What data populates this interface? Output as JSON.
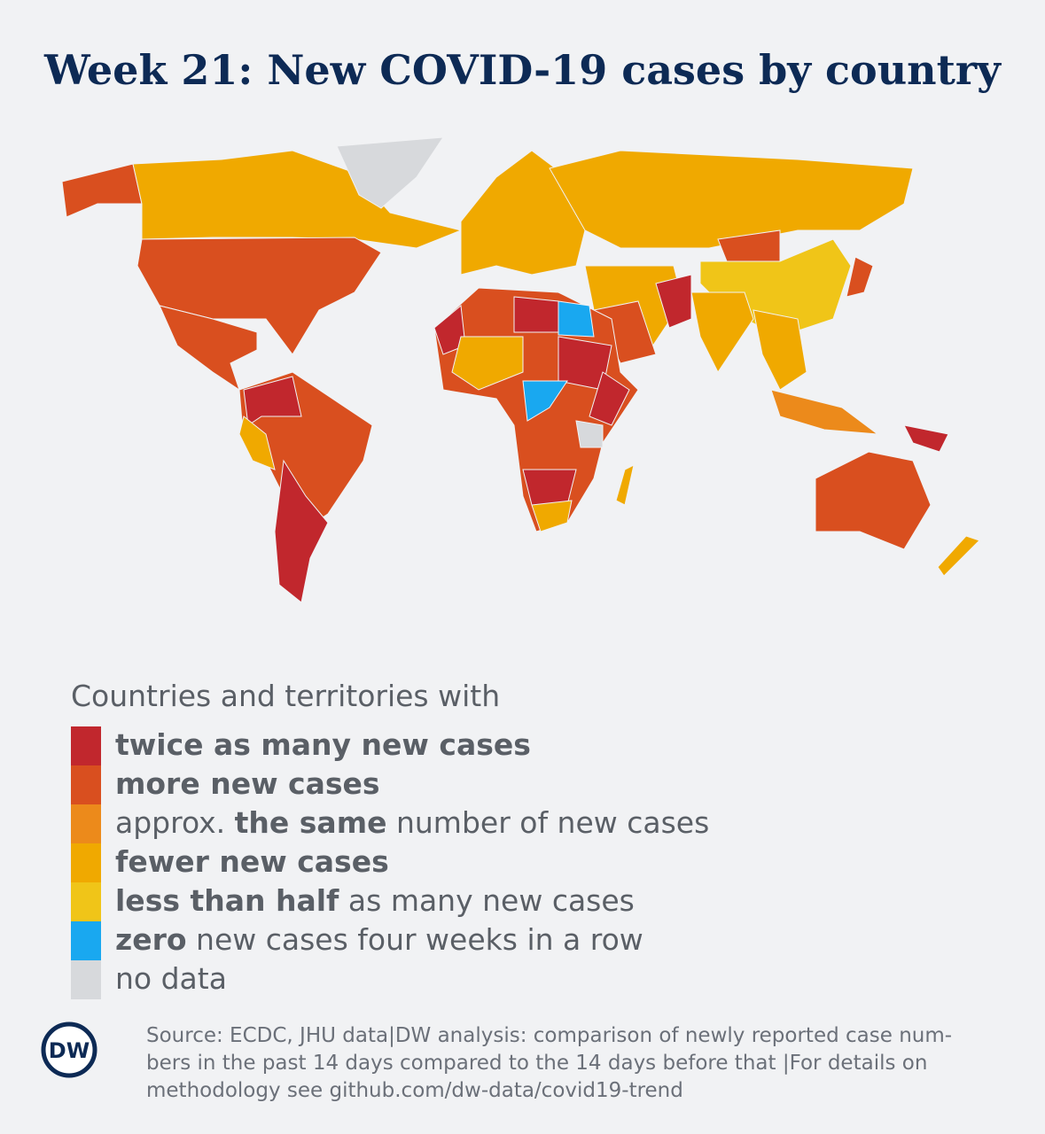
{
  "title": "Week 21: New COVID-19 cases by country",
  "legend": {
    "heading": "Countries and territories with",
    "items": [
      {
        "color": "#c1272d",
        "parts": [
          {
            "text": "twice as many new cases",
            "bold": true
          }
        ]
      },
      {
        "color": "#d94f1f",
        "parts": [
          {
            "text": "more new cases",
            "bold": true
          }
        ]
      },
      {
        "color": "#ec8a1b",
        "parts": [
          {
            "text": "approx. ",
            "bold": false
          },
          {
            "text": "the same",
            "bold": true
          },
          {
            "text": " number of new cases",
            "bold": false
          }
        ]
      },
      {
        "color": "#f0a900",
        "parts": [
          {
            "text": "fewer new cases",
            "bold": true
          }
        ]
      },
      {
        "color": "#f0c518",
        "parts": [
          {
            "text": "less than half",
            "bold": true
          },
          {
            "text": " as many new cases",
            "bold": false
          }
        ]
      },
      {
        "color": "#19a8f0",
        "parts": [
          {
            "text": "zero",
            "bold": true
          },
          {
            "text": " new cases four weeks in a row",
            "bold": false
          }
        ]
      },
      {
        "color": "#d7d9dc",
        "parts": [
          {
            "text": "no data",
            "bold": false
          }
        ]
      }
    ]
  },
  "source": {
    "lines": [
      "Source: ECDC, JHU data|DW analysis: comparison of newly reported case num-",
      "bers in the past 14 days compared to the 14 days before that |For details on",
      "methodology see github.com/dw-data/covid19-trend"
    ]
  },
  "logo": "DW"
}
